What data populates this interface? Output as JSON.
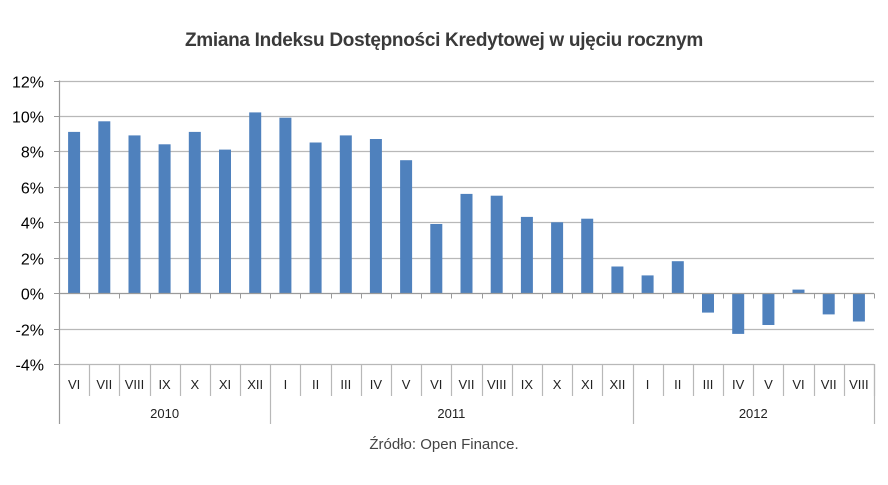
{
  "chart_data": {
    "type": "bar",
    "title": "Zmiana Indeksu Dostępności Kredytowej w ujęciu rocznym",
    "xlabel": "",
    "ylabel": "",
    "ylim": [
      -0.04,
      0.12
    ],
    "yticks": [
      "12%",
      "10%",
      "8%",
      "6%",
      "4%",
      "2%",
      "0%",
      "-2%",
      "-4%"
    ],
    "ytick_values": [
      12,
      10,
      8,
      6,
      4,
      2,
      0,
      -2,
      -4
    ],
    "grid": true,
    "legend": null,
    "bar_color": "#4F81BD",
    "categories": [
      "VI",
      "VII",
      "VIII",
      "IX",
      "X",
      "XI",
      "XII",
      "I",
      "II",
      "III",
      "IV",
      "V",
      "VI",
      "VII",
      "VIII",
      "IX",
      "X",
      "XI",
      "XII",
      "I",
      "II",
      "III",
      "IV",
      "V",
      "VI",
      "VII",
      "VIII"
    ],
    "groups": [
      {
        "label": "2010",
        "count": 7
      },
      {
        "label": "2011",
        "count": 12
      },
      {
        "label": "2012",
        "count": 8
      }
    ],
    "series": [
      {
        "name": "Zmiana Indeksu Dostępności Kredytowej r/r",
        "values": [
          9.1,
          9.7,
          8.9,
          8.4,
          9.1,
          8.1,
          10.2,
          9.9,
          8.5,
          8.9,
          8.7,
          7.5,
          3.9,
          5.6,
          5.5,
          4.3,
          4.0,
          4.2,
          1.5,
          1.0,
          1.8,
          -1.1,
          -2.3,
          -1.8,
          0.2,
          -1.2,
          -1.6
        ]
      }
    ],
    "value_unit": "%"
  },
  "header": {
    "title": "Zmiana Indeksu Dostępności Kredytowej w ujęciu rocznym"
  },
  "footer": {
    "source": "Źródło: Open Finance."
  }
}
